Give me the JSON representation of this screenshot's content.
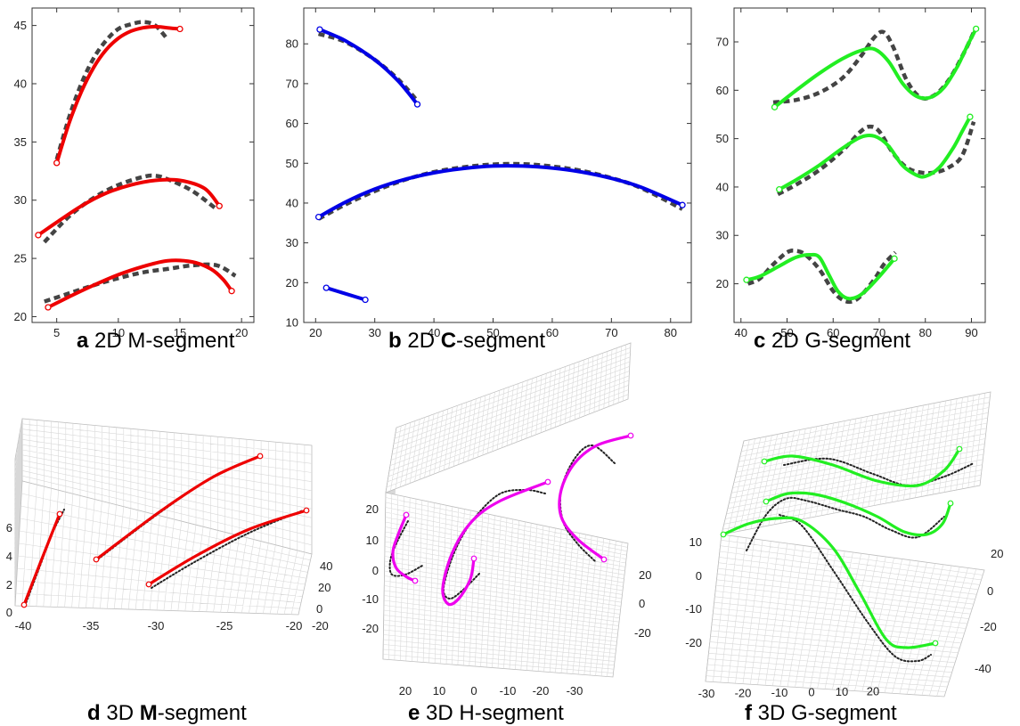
{
  "colors": {
    "red": "#ee0000",
    "blue": "#0000e6",
    "green": "#22ee22",
    "magenta": "#ee00ee",
    "dashed": "#444444",
    "dotted": "#222222",
    "grid": "#d8d8d8",
    "axis": "#333333"
  },
  "captions": {
    "a": {
      "letter": "a",
      "pre": " 2D ",
      "bold": "",
      "post": "M-segment"
    },
    "b": {
      "letter": "b",
      "pre": " 2D ",
      "bold": "C",
      "post": "-segment"
    },
    "c": {
      "letter": "c",
      "pre": " 2D ",
      "bold": "",
      "post": "G-segment"
    },
    "d": {
      "letter": "d",
      "pre": " 3D ",
      "bold": "M",
      "post": "-segment"
    },
    "e": {
      "letter": "e",
      "pre": " 3D ",
      "bold": "",
      "post": "H-segment"
    },
    "f": {
      "letter": "f",
      "pre": " 3D ",
      "bold": "",
      "post": "G-segment"
    }
  },
  "chart_data": [
    {
      "id": "a",
      "type": "line",
      "xlim": [
        3,
        21
      ],
      "ylim": [
        19.5,
        46.5
      ],
      "xticks": [
        5,
        10,
        15,
        20
      ],
      "yticks": [
        20,
        25,
        30,
        35,
        40,
        45
      ],
      "series": [
        {
          "style": "solid",
          "color": "red",
          "endpoints": true,
          "x": [
            5,
            6,
            7,
            8,
            9,
            10,
            11,
            12,
            13,
            14,
            15
          ],
          "y": [
            33.2,
            36.6,
            39.3,
            41.4,
            42.9,
            43.9,
            44.5,
            44.8,
            44.9,
            44.8,
            44.7
          ]
        },
        {
          "style": "dashed",
          "color": "dashed",
          "x": [
            5,
            6,
            7,
            8,
            9,
            10,
            11,
            12,
            13,
            14
          ],
          "y": [
            33.5,
            37.1,
            40.0,
            42.2,
            43.7,
            44.7,
            45.1,
            45.3,
            45.0,
            43.8
          ]
        },
        {
          "style": "solid",
          "color": "red",
          "endpoints": true,
          "x": [
            3.5,
            5,
            7,
            9,
            11,
            13,
            15,
            17,
            18.2
          ],
          "y": [
            27.0,
            28.1,
            29.5,
            30.6,
            31.3,
            31.7,
            31.7,
            31.0,
            29.5
          ]
        },
        {
          "style": "dashed",
          "color": "dashed",
          "x": [
            4,
            6,
            8,
            10,
            12,
            13,
            14,
            16,
            18
          ],
          "y": [
            26.4,
            28.6,
            30.2,
            31.3,
            32.0,
            32.1,
            31.8,
            30.8,
            29.2
          ]
        },
        {
          "style": "solid",
          "color": "red",
          "endpoints": true,
          "x": [
            4.3,
            6,
            8,
            10,
            12,
            14,
            16,
            17.5,
            18.5,
            19.2
          ],
          "y": [
            20.8,
            21.7,
            22.7,
            23.6,
            24.3,
            24.8,
            24.7,
            24.1,
            23.2,
            22.2
          ]
        },
        {
          "style": "dashed",
          "color": "dashed",
          "x": [
            4,
            6,
            8,
            10,
            12,
            14,
            16,
            18,
            19.5
          ],
          "y": [
            21.3,
            22.0,
            22.7,
            23.3,
            23.8,
            24.1,
            24.4,
            24.4,
            23.5
          ]
        }
      ]
    },
    {
      "id": "b",
      "type": "line",
      "xlim": [
        18,
        83.5
      ],
      "ylim": [
        10,
        89
      ],
      "xticks": [
        20,
        30,
        40,
        50,
        60,
        70,
        80
      ],
      "yticks": [
        10,
        20,
        30,
        40,
        50,
        60,
        70,
        80
      ],
      "series": [
        {
          "style": "solid",
          "color": "blue",
          "endpoints": true,
          "x": [
            20.7,
            25,
            30,
            34,
            37.2
          ],
          "y": [
            83.6,
            80.8,
            76.0,
            70.6,
            64.8
          ]
        },
        {
          "style": "dashed",
          "color": "dashed",
          "x": [
            20.5,
            25,
            30,
            34,
            37
          ],
          "y": [
            82.5,
            80.5,
            76.0,
            71.0,
            66.0
          ]
        },
        {
          "style": "solid",
          "color": "blue",
          "endpoints": true,
          "x": [
            20.5,
            25,
            30,
            35,
            40,
            45,
            50,
            55,
            60,
            65,
            70,
            75,
            82
          ],
          "y": [
            36.5,
            40.2,
            43.5,
            45.9,
            47.6,
            48.7,
            49.3,
            49.3,
            48.8,
            47.8,
            46.2,
            44.0,
            39.5
          ]
        },
        {
          "style": "dashed",
          "color": "dashed",
          "x": [
            20.5,
            25,
            30,
            35,
            40,
            45,
            50,
            55,
            60,
            65,
            70,
            75,
            82
          ],
          "y": [
            36.0,
            39.6,
            43.0,
            45.8,
            47.8,
            49.0,
            49.7,
            49.8,
            49.2,
            48.1,
            46.3,
            43.8,
            38.5
          ]
        },
        {
          "style": "solid",
          "color": "blue",
          "endpoints": true,
          "x": [
            21.8,
            28.4
          ],
          "y": [
            18.7,
            15.7
          ]
        }
      ]
    },
    {
      "id": "c",
      "type": "line",
      "xlim": [
        38.5,
        93
      ],
      "ylim": [
        12,
        77
      ],
      "xticks": [
        40,
        50,
        60,
        70,
        80,
        90
      ],
      "yticks": [
        20,
        30,
        40,
        50,
        60,
        70
      ],
      "series": [
        {
          "style": "solid",
          "color": "green",
          "endpoints": true,
          "x": [
            47.3,
            52,
            57,
            62,
            66,
            69,
            72,
            75,
            78,
            81,
            84,
            87,
            89,
            91
          ],
          "y": [
            56.5,
            60.0,
            63.5,
            66.5,
            68.2,
            68.5,
            66.0,
            61.5,
            58.8,
            58.5,
            60.5,
            65.0,
            69.0,
            72.7
          ]
        },
        {
          "style": "dashed",
          "color": "dashed",
          "x": [
            47,
            52,
            57,
            62,
            66,
            69,
            71,
            73,
            76,
            79,
            82,
            85,
            88,
            91
          ],
          "y": [
            57.5,
            58.0,
            59.5,
            62.5,
            67.0,
            71.0,
            72.0,
            69.0,
            62.0,
            58.5,
            59.0,
            62.0,
            67.0,
            73.0
          ]
        },
        {
          "style": "solid",
          "color": "green",
          "endpoints": true,
          "x": [
            48.3,
            52,
            57,
            62,
            66,
            69,
            72,
            75,
            78,
            80,
            83,
            86,
            88,
            89.7
          ],
          "y": [
            39.5,
            41.5,
            44.5,
            48.0,
            50.3,
            50.5,
            48.5,
            44.5,
            42.5,
            42.2,
            44.0,
            48.0,
            51.5,
            54.5
          ]
        },
        {
          "style": "dashed",
          "color": "dashed",
          "x": [
            48,
            52,
            57,
            62,
            66,
            68,
            70,
            73,
            76,
            79,
            82,
            85,
            88,
            90.5
          ],
          "y": [
            38.5,
            40.5,
            43.5,
            47.5,
            51.5,
            52.5,
            51.5,
            47.0,
            44.0,
            43.0,
            43.0,
            44.0,
            46.5,
            53.5
          ]
        },
        {
          "style": "solid",
          "color": "green",
          "endpoints": true,
          "x": [
            41.2,
            44,
            48,
            52,
            55,
            57,
            59,
            61,
            63,
            65,
            67,
            70,
            73.3
          ],
          "y": [
            20.8,
            21.5,
            23.5,
            25.5,
            26.0,
            25.5,
            22.0,
            18.5,
            17.0,
            17.2,
            18.5,
            21.5,
            25.2
          ]
        },
        {
          "style": "dashed",
          "color": "dashed",
          "x": [
            41.5,
            44,
            47,
            50,
            52,
            54,
            57,
            60,
            62,
            64,
            66,
            69,
            71,
            73.5
          ],
          "y": [
            20.0,
            21.0,
            24.0,
            26.5,
            26.8,
            26.0,
            23.0,
            18.5,
            16.7,
            16.3,
            17.5,
            21.0,
            24.0,
            26.5
          ]
        }
      ]
    },
    {
      "id": "d",
      "type": "line",
      "xticks": [
        "-40",
        "-35",
        "-30",
        "-25",
        "-20"
      ],
      "yticks": [
        "40",
        "20",
        "0",
        "-20"
      ],
      "zticks": [
        "0",
        "2",
        "4",
        "6"
      ]
    },
    {
      "id": "e",
      "type": "line",
      "xticks": [
        "20",
        "10",
        "0",
        "-10",
        "-20",
        "-30"
      ],
      "yticks": [
        "20",
        "0",
        "-20"
      ],
      "zticks": [
        "20",
        "10",
        "0",
        "-10",
        "-20"
      ]
    },
    {
      "id": "f",
      "type": "line",
      "xticks": [
        "-30",
        "-20",
        "-10",
        "0",
        "10",
        "20"
      ],
      "yticks": [
        "20",
        "0",
        "-20",
        "-40"
      ],
      "zticks": [
        "10",
        "0",
        "-10",
        "-20"
      ]
    }
  ]
}
